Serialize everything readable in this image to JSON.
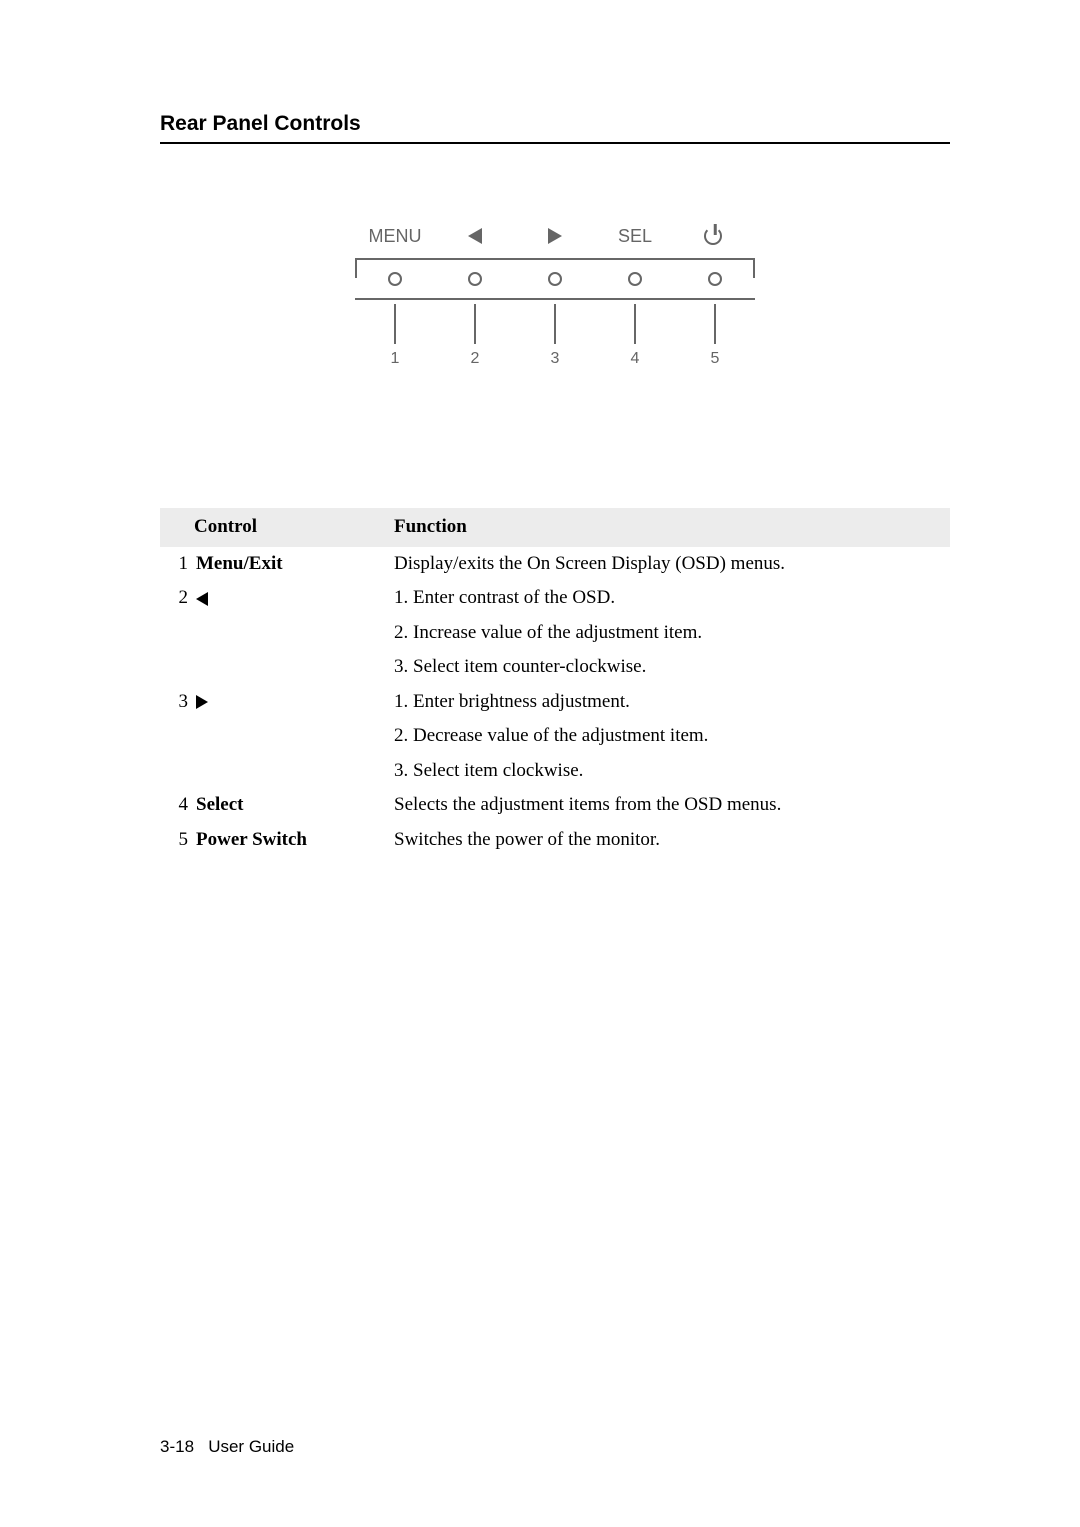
{
  "heading": "Rear Panel Controls",
  "diagram": {
    "labels": [
      "MENU",
      "left",
      "right",
      "SEL",
      "power"
    ],
    "numbers": [
      "1",
      "2",
      "3",
      "4",
      "5"
    ],
    "color": "#656565"
  },
  "table": {
    "headers": {
      "control": "Control",
      "function": "Function"
    },
    "rows": [
      {
        "num": "1",
        "name": "Menu/Exit",
        "name_type": "text",
        "funcs": [
          "Display/exits the On Screen Display (OSD) menus."
        ]
      },
      {
        "num": "2",
        "name": "left",
        "name_type": "icon",
        "funcs": [
          "1. Enter contrast of the OSD.",
          "2. Increase value of the adjustment item.",
          "3. Select item counter-clockwise."
        ]
      },
      {
        "num": "3",
        "name": "right",
        "name_type": "icon",
        "funcs": [
          "1. Enter brightness adjustment.",
          "2. Decrease value of the adjustment item.",
          "3. Select item clockwise."
        ]
      },
      {
        "num": "4",
        "name": "Select",
        "name_type": "text",
        "funcs": [
          "Selects the adjustment items from the OSD menus."
        ]
      },
      {
        "num": "5",
        "name": "Power Switch",
        "name_type": "text",
        "funcs": [
          "Switches the power of the monitor."
        ]
      }
    ]
  },
  "footer": {
    "page": "3-18",
    "label": "User Guide"
  }
}
